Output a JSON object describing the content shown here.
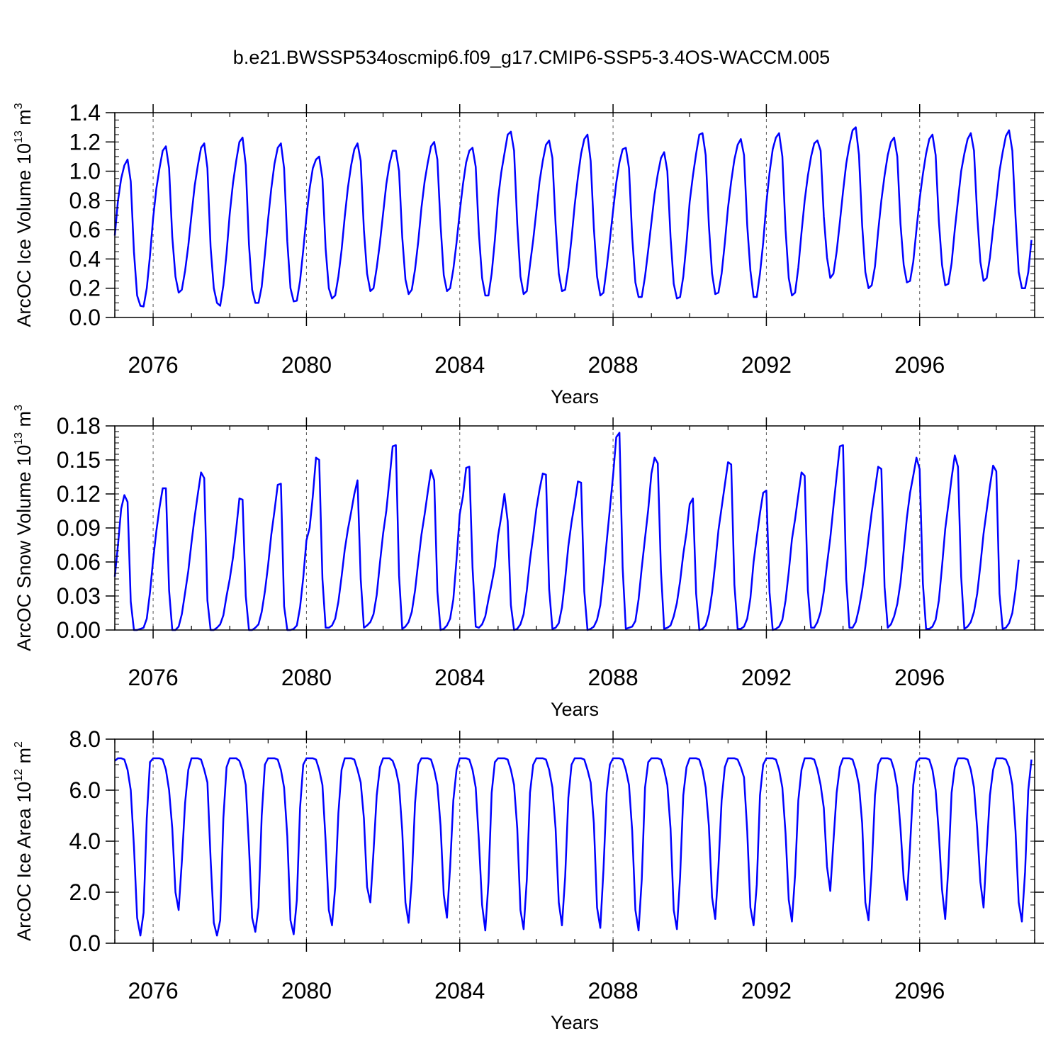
{
  "figure": {
    "title": "b.e21.BWSSP534oscmip6.f09_g17.CMIP6-SSP5-3.4OS-WACCM.005",
    "line_color": "#0000ff",
    "grid_color": "#555555"
  },
  "chart_data": [
    {
      "type": "line",
      "ylabel": {
        "text": "ArcOC Ice Volume 10",
        "exp": "13",
        "unit": " m",
        "unit_exp": "3"
      },
      "xlabel": "Years",
      "xlim": [
        2075.0,
        2099.0
      ],
      "ylim": [
        0.0,
        1.4
      ],
      "x_ticks": [
        2076,
        2080,
        2084,
        2088,
        2092,
        2096
      ],
      "x_minor_step": 1,
      "y_ticks": [
        0.0,
        0.2,
        0.4,
        0.6,
        0.8,
        1.0,
        1.2,
        1.4
      ],
      "y_tick_labels": [
        "0.0",
        "0.2",
        "0.4",
        "0.6",
        "0.8",
        "1.0",
        "1.2",
        "1.4"
      ],
      "y_minor_step": 0.05,
      "grid": "vertical dashed at major x ticks",
      "series": [
        {
          "start": 2075.0,
          "step": 0.0833333,
          "values": [
            0.56,
            0.8,
            0.95,
            1.04,
            1.08,
            0.93,
            0.45,
            0.15,
            0.08,
            0.075,
            0.2,
            0.42,
            0.68,
            0.88,
            1.02,
            1.14,
            1.17,
            1.02,
            0.55,
            0.28,
            0.17,
            0.19,
            0.32,
            0.49,
            0.7,
            0.9,
            1.04,
            1.16,
            1.19,
            1.02,
            0.48,
            0.2,
            0.1,
            0.08,
            0.22,
            0.44,
            0.71,
            0.92,
            1.07,
            1.2,
            1.23,
            1.04,
            0.5,
            0.19,
            0.1,
            0.1,
            0.21,
            0.43,
            0.67,
            0.88,
            1.05,
            1.16,
            1.19,
            1.02,
            0.52,
            0.2,
            0.11,
            0.115,
            0.25,
            0.46,
            0.69,
            0.88,
            1.02,
            1.08,
            1.1,
            0.95,
            0.47,
            0.2,
            0.13,
            0.15,
            0.28,
            0.46,
            0.69,
            0.89,
            1.04,
            1.15,
            1.19,
            1.07,
            0.6,
            0.3,
            0.18,
            0.2,
            0.34,
            0.51,
            0.71,
            0.91,
            1.05,
            1.14,
            1.14,
            1.0,
            0.55,
            0.26,
            0.16,
            0.19,
            0.33,
            0.52,
            0.75,
            0.93,
            1.06,
            1.17,
            1.2,
            1.08,
            0.63,
            0.29,
            0.18,
            0.2,
            0.33,
            0.51,
            0.72,
            0.91,
            1.06,
            1.14,
            1.16,
            1.03,
            0.57,
            0.27,
            0.15,
            0.15,
            0.3,
            0.53,
            0.81,
            0.99,
            1.12,
            1.25,
            1.27,
            1.14,
            0.64,
            0.28,
            0.16,
            0.18,
            0.36,
            0.53,
            0.73,
            0.93,
            1.07,
            1.18,
            1.21,
            1.09,
            0.64,
            0.3,
            0.18,
            0.19,
            0.34,
            0.54,
            0.77,
            0.96,
            1.12,
            1.22,
            1.25,
            1.07,
            0.61,
            0.28,
            0.15,
            0.17,
            0.34,
            0.53,
            0.73,
            0.92,
            1.06,
            1.15,
            1.16,
            1.02,
            0.55,
            0.24,
            0.14,
            0.14,
            0.28,
            0.46,
            0.65,
            0.84,
            0.98,
            1.09,
            1.13,
            1.0,
            0.55,
            0.23,
            0.13,
            0.14,
            0.28,
            0.51,
            0.79,
            0.97,
            1.12,
            1.25,
            1.26,
            1.11,
            0.63,
            0.3,
            0.16,
            0.17,
            0.3,
            0.51,
            0.75,
            0.93,
            1.08,
            1.18,
            1.22,
            1.11,
            0.63,
            0.32,
            0.14,
            0.14,
            0.3,
            0.51,
            0.78,
            0.99,
            1.15,
            1.23,
            1.26,
            1.1,
            0.6,
            0.27,
            0.15,
            0.17,
            0.34,
            0.58,
            0.8,
            0.97,
            1.1,
            1.19,
            1.21,
            1.14,
            0.69,
            0.41,
            0.27,
            0.3,
            0.45,
            0.65,
            0.86,
            1.05,
            1.18,
            1.28,
            1.3,
            1.11,
            0.63,
            0.31,
            0.2,
            0.22,
            0.35,
            0.59,
            0.8,
            0.97,
            1.11,
            1.2,
            1.23,
            1.1,
            0.64,
            0.36,
            0.24,
            0.25,
            0.38,
            0.6,
            0.81,
            0.98,
            1.12,
            1.22,
            1.25,
            1.11,
            0.66,
            0.36,
            0.22,
            0.23,
            0.37,
            0.6,
            0.8,
            1.0,
            1.12,
            1.22,
            1.26,
            1.14,
            0.7,
            0.38,
            0.25,
            0.27,
            0.41,
            0.61,
            0.8,
            1.0,
            1.13,
            1.24,
            1.28,
            1.14,
            0.69,
            0.31,
            0.2,
            0.2,
            0.31,
            0.53
          ]
        }
      ]
    },
    {
      "type": "line",
      "ylabel": {
        "text": "ArcOC Snow Volume 10",
        "exp": "13",
        "unit": " m",
        "unit_exp": "3"
      },
      "xlabel": "Years",
      "xlim": [
        2075.0,
        2099.0
      ],
      "ylim": [
        0.0,
        0.18
      ],
      "x_ticks": [
        2076,
        2080,
        2084,
        2088,
        2092,
        2096
      ],
      "x_minor_step": 1,
      "y_ticks": [
        0.0,
        0.03,
        0.06,
        0.09,
        0.12,
        0.15,
        0.18
      ],
      "y_tick_labels": [
        "0.00",
        "0.03",
        "0.06",
        "0.09",
        "0.12",
        "0.15",
        "0.18"
      ],
      "y_minor_step": 0.005,
      "grid": "vertical dashed at major x ticks",
      "series": [
        {
          "start": 2075.0,
          "step": 0.0833333,
          "values": [
            0.047,
            0.075,
            0.107,
            0.119,
            0.113,
            0.025,
            0.0,
            0.0,
            0.001,
            0.002,
            0.01,
            0.033,
            0.062,
            0.087,
            0.108,
            0.125,
            0.125,
            0.035,
            0.0,
            0.0,
            0.003,
            0.014,
            0.033,
            0.052,
            0.077,
            0.1,
            0.12,
            0.139,
            0.134,
            0.026,
            0.0,
            0.0,
            0.002,
            0.005,
            0.013,
            0.03,
            0.045,
            0.064,
            0.089,
            0.116,
            0.115,
            0.03,
            0.0,
            0.0,
            0.002,
            0.005,
            0.016,
            0.034,
            0.057,
            0.084,
            0.105,
            0.128,
            0.129,
            0.021,
            0.0,
            0.0,
            0.001,
            0.004,
            0.02,
            0.046,
            0.079,
            0.09,
            0.118,
            0.152,
            0.15,
            0.045,
            0.002,
            0.002,
            0.004,
            0.01,
            0.025,
            0.047,
            0.071,
            0.089,
            0.104,
            0.12,
            0.132,
            0.045,
            0.002,
            0.004,
            0.007,
            0.014,
            0.031,
            0.059,
            0.085,
            0.105,
            0.133,
            0.162,
            0.163,
            0.048,
            0.001,
            0.003,
            0.007,
            0.016,
            0.035,
            0.06,
            0.084,
            0.102,
            0.122,
            0.141,
            0.132,
            0.034,
            0.0,
            0.001,
            0.004,
            0.01,
            0.027,
            0.062,
            0.102,
            0.118,
            0.143,
            0.144,
            0.055,
            0.003,
            0.002,
            0.005,
            0.012,
            0.027,
            0.041,
            0.056,
            0.083,
            0.1,
            0.12,
            0.096,
            0.022,
            0.0,
            0.001,
            0.005,
            0.014,
            0.035,
            0.062,
            0.083,
            0.107,
            0.124,
            0.138,
            0.137,
            0.036,
            0.001,
            0.002,
            0.006,
            0.02,
            0.045,
            0.074,
            0.095,
            0.112,
            0.131,
            0.13,
            0.034,
            0.0,
            0.001,
            0.003,
            0.009,
            0.022,
            0.048,
            0.078,
            0.107,
            0.136,
            0.17,
            0.174,
            0.055,
            0.001,
            0.002,
            0.003,
            0.008,
            0.027,
            0.055,
            0.081,
            0.106,
            0.138,
            0.152,
            0.147,
            0.052,
            0.001,
            0.002,
            0.004,
            0.012,
            0.024,
            0.043,
            0.067,
            0.086,
            0.111,
            0.116,
            0.032,
            0.0,
            0.001,
            0.004,
            0.014,
            0.033,
            0.059,
            0.088,
            0.108,
            0.128,
            0.148,
            0.146,
            0.04,
            0.001,
            0.001,
            0.003,
            0.01,
            0.028,
            0.06,
            0.082,
            0.103,
            0.121,
            0.123,
            0.033,
            0.0,
            0.001,
            0.003,
            0.009,
            0.026,
            0.051,
            0.08,
            0.098,
            0.119,
            0.139,
            0.136,
            0.035,
            0.002,
            0.002,
            0.007,
            0.016,
            0.034,
            0.058,
            0.081,
            0.109,
            0.136,
            0.162,
            0.163,
            0.045,
            0.002,
            0.002,
            0.007,
            0.019,
            0.035,
            0.056,
            0.081,
            0.104,
            0.124,
            0.144,
            0.142,
            0.038,
            0.002,
            0.005,
            0.012,
            0.023,
            0.042,
            0.07,
            0.099,
            0.121,
            0.136,
            0.152,
            0.142,
            0.041,
            0.001,
            0.001,
            0.003,
            0.009,
            0.026,
            0.056,
            0.089,
            0.111,
            0.134,
            0.154,
            0.144,
            0.047,
            0.001,
            0.003,
            0.007,
            0.016,
            0.032,
            0.057,
            0.085,
            0.106,
            0.127,
            0.145,
            0.14,
            0.032,
            0.001,
            0.002,
            0.006,
            0.015,
            0.035,
            0.062
          ]
        }
      ]
    },
    {
      "type": "line",
      "ylabel": {
        "text": "ArcOC Ice Area 10",
        "exp": "12",
        "unit": " m",
        "unit_exp": "2"
      },
      "xlabel": "Years",
      "xlim": [
        2075.0,
        2099.0
      ],
      "ylim": [
        0.0,
        8.0
      ],
      "x_ticks": [
        2076,
        2080,
        2084,
        2088,
        2092,
        2096
      ],
      "x_minor_step": 1,
      "y_ticks": [
        0.0,
        2.0,
        4.0,
        6.0,
        8.0
      ],
      "y_tick_labels": [
        "0.0",
        "2.0",
        "4.0",
        "6.0",
        "8.0"
      ],
      "y_minor_step": 0.5,
      "grid": "vertical dashed at major x ticks",
      "series": [
        {
          "start": 2075.0,
          "step": 0.0833333,
          "values": [
            7.15,
            7.25,
            7.25,
            7.2,
            6.8,
            6.0,
            3.8,
            1.0,
            0.3,
            1.2,
            4.9,
            7.1,
            7.25,
            7.25,
            7.25,
            7.2,
            6.8,
            6.0,
            4.5,
            2.0,
            1.3,
            3.2,
            5.5,
            6.8,
            7.25,
            7.25,
            7.25,
            7.2,
            6.8,
            6.3,
            3.3,
            0.8,
            0.3,
            0.9,
            4.9,
            6.9,
            7.25,
            7.25,
            7.25,
            7.15,
            6.8,
            6.2,
            3.8,
            1.0,
            0.45,
            1.4,
            5.0,
            7.0,
            7.25,
            7.25,
            7.25,
            7.2,
            6.8,
            6.1,
            4.2,
            0.9,
            0.35,
            1.7,
            5.3,
            7.0,
            7.25,
            7.25,
            7.25,
            7.2,
            6.8,
            6.2,
            4.0,
            1.3,
            0.7,
            2.2,
            5.1,
            6.8,
            7.25,
            7.25,
            7.25,
            7.2,
            6.8,
            6.3,
            4.9,
            2.2,
            1.6,
            3.6,
            5.8,
            6.9,
            7.25,
            7.25,
            7.25,
            7.15,
            6.8,
            6.2,
            4.4,
            1.6,
            0.8,
            2.5,
            5.5,
            7.0,
            7.25,
            7.25,
            7.25,
            7.2,
            6.8,
            6.2,
            4.6,
            1.9,
            1.0,
            3.0,
            5.6,
            6.8,
            7.25,
            7.25,
            7.25,
            7.2,
            6.8,
            6.1,
            4.0,
            1.5,
            0.5,
            2.4,
            5.9,
            7.1,
            7.25,
            7.25,
            7.25,
            7.2,
            6.8,
            6.2,
            4.5,
            1.3,
            0.55,
            2.5,
            5.9,
            7.0,
            7.25,
            7.25,
            7.25,
            7.2,
            6.8,
            6.1,
            4.5,
            1.6,
            0.7,
            2.6,
            5.7,
            7.0,
            7.25,
            7.25,
            7.25,
            7.2,
            6.8,
            6.3,
            4.7,
            1.4,
            0.6,
            2.9,
            5.9,
            7.0,
            7.25,
            7.25,
            7.25,
            7.2,
            6.8,
            6.2,
            4.4,
            1.3,
            0.5,
            2.5,
            6.1,
            7.1,
            7.25,
            7.25,
            7.25,
            7.2,
            6.8,
            6.2,
            4.5,
            1.3,
            0.55,
            2.6,
            5.8,
            6.9,
            7.25,
            7.25,
            7.25,
            7.2,
            6.8,
            6.1,
            4.6,
            1.8,
            0.95,
            3.0,
            5.6,
            6.9,
            7.25,
            7.25,
            7.25,
            7.2,
            6.9,
            6.5,
            4.4,
            1.4,
            0.7,
            2.3,
            5.8,
            7.0,
            7.25,
            7.25,
            7.25,
            7.2,
            6.8,
            6.1,
            4.3,
            1.7,
            0.85,
            2.7,
            5.6,
            6.8,
            7.25,
            7.25,
            7.25,
            7.2,
            6.8,
            6.2,
            5.3,
            3.0,
            2.05,
            4.0,
            5.9,
            6.9,
            7.25,
            7.25,
            7.25,
            7.2,
            6.8,
            6.2,
            4.7,
            1.6,
            0.9,
            2.9,
            5.8,
            7.0,
            7.25,
            7.25,
            7.25,
            7.2,
            6.8,
            6.1,
            4.5,
            2.5,
            1.7,
            3.8,
            6.2,
            7.1,
            7.25,
            7.25,
            7.25,
            7.2,
            6.8,
            6.0,
            4.3,
            2.1,
            0.95,
            3.0,
            5.9,
            6.9,
            7.25,
            7.25,
            7.25,
            7.2,
            6.8,
            6.1,
            4.5,
            2.4,
            1.4,
            3.7,
            5.8,
            6.8,
            7.25,
            7.25,
            7.25,
            7.2,
            6.9,
            6.2,
            4.4,
            1.6,
            0.85,
            2.8,
            6.0,
            7.2
          ]
        }
      ]
    }
  ]
}
